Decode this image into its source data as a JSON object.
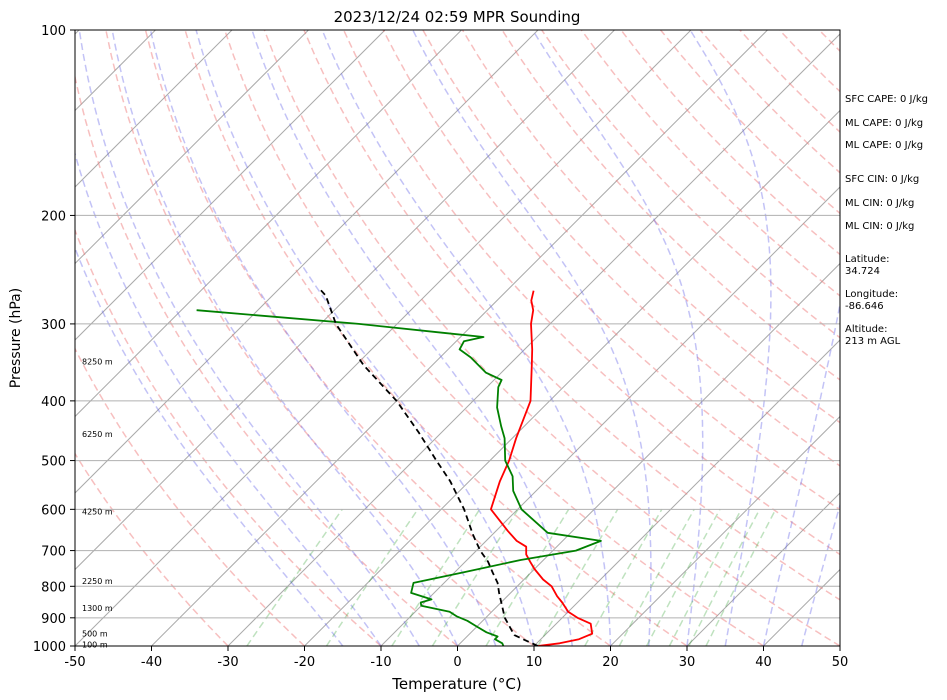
{
  "chart_data": {
    "type": "skew-t",
    "title": "2023/12/24 02:59 MPR Sounding",
    "xlabel": "Temperature (°C)",
    "ylabel": "Pressure (hPa)",
    "xlim": [
      -50,
      50
    ],
    "ylim": [
      1000,
      100
    ],
    "y_scale": "log",
    "x_ticks": [
      -50,
      -40,
      -30,
      -20,
      -10,
      0,
      10,
      20,
      30,
      40,
      50
    ],
    "y_ticks": [
      1000,
      900,
      800,
      700,
      600,
      500,
      400,
      300,
      200,
      100
    ],
    "grid": "horizontal at pressure ticks",
    "height_labels": [
      {
        "p": 995,
        "label": "100 m"
      },
      {
        "p": 955,
        "label": "500 m"
      },
      {
        "p": 868,
        "label": "1300 m"
      },
      {
        "p": 785,
        "label": "2250 m"
      },
      {
        "p": 605,
        "label": "4250 m"
      },
      {
        "p": 453,
        "label": "6250 m"
      },
      {
        "p": 345,
        "label": "8250 m"
      }
    ],
    "series": [
      {
        "color": "#ff0000",
        "points": [
          [
            10.5,
            1000
          ],
          [
            13,
            990
          ],
          [
            15,
            975
          ],
          [
            16,
            955
          ],
          [
            14.5,
            920
          ],
          [
            12,
            900
          ],
          [
            10,
            880
          ],
          [
            8,
            850
          ],
          [
            6.5,
            830
          ],
          [
            4.5,
            800
          ],
          [
            2.5,
            780
          ],
          [
            0,
            750
          ],
          [
            -1.5,
            730
          ],
          [
            -3,
            710
          ],
          [
            -4,
            690
          ],
          [
            -6,
            675
          ],
          [
            -8.5,
            650
          ],
          [
            -13.5,
            600
          ],
          [
            -16,
            540
          ],
          [
            -17.5,
            500
          ],
          [
            -19.5,
            460
          ],
          [
            -22.5,
            400
          ],
          [
            -27,
            350
          ],
          [
            -29,
            330
          ],
          [
            -32.5,
            300
          ],
          [
            -34,
            285
          ],
          [
            -35.5,
            275
          ],
          [
            -36.5,
            265
          ]
        ]
      },
      {
        "color": "#008000",
        "points": [
          [
            6,
            1000
          ],
          [
            5.5,
            990
          ],
          [
            4,
            975
          ],
          [
            4,
            965
          ],
          [
            2,
            950
          ],
          [
            0,
            930
          ],
          [
            -2,
            910
          ],
          [
            -4,
            895
          ],
          [
            -5.5,
            880
          ],
          [
            -10,
            860
          ],
          [
            -10.5,
            850
          ],
          [
            -9.5,
            840
          ],
          [
            -13,
            820
          ],
          [
            -14,
            790
          ],
          [
            -9,
            760
          ],
          [
            -3,
            725
          ],
          [
            3,
            700
          ],
          [
            5,
            675
          ],
          [
            -3,
            655
          ],
          [
            -9.5,
            600
          ],
          [
            -13,
            560
          ],
          [
            -15,
            530
          ],
          [
            -18,
            500
          ],
          [
            -21,
            460
          ],
          [
            -23,
            440
          ],
          [
            -26,
            410
          ],
          [
            -28.5,
            380
          ],
          [
            -29,
            370
          ],
          [
            -32,
            360
          ],
          [
            -36,
            340
          ],
          [
            -38.5,
            330
          ],
          [
            -39,
            320
          ],
          [
            -37,
            315
          ],
          [
            -43,
            310
          ],
          [
            -55,
            300
          ],
          [
            -78,
            285
          ]
        ]
      },
      {
        "color": "#000000",
        "dash": "6,4",
        "points": [
          [
            10.5,
            1000
          ],
          [
            6,
            960
          ],
          [
            2.5,
            900
          ],
          [
            -1.5,
            820
          ],
          [
            -3,
            790
          ],
          [
            -5,
            760
          ],
          [
            -7,
            730
          ],
          [
            -9.5,
            700
          ],
          [
            -12.5,
            660
          ],
          [
            -17,
            600
          ],
          [
            -22.5,
            540
          ],
          [
            -27,
            500
          ],
          [
            -33,
            450
          ],
          [
            -40,
            400
          ],
          [
            -49,
            350
          ],
          [
            -58,
            300
          ],
          [
            -63,
            270
          ],
          [
            -65,
            262
          ]
        ]
      }
    ]
  },
  "info_panel": {
    "sfc_cape": "SFC CAPE: 0 J/kg",
    "ml_cape_1": "ML CAPE: 0 J/kg",
    "ml_cape_2": "ML CAPE: 0 J/kg",
    "sfc_cin": "SFC CIN: 0 J/kg",
    "ml_cin_1": "ML CIN: 0 J/kg",
    "ml_cin_2": "ML CIN: 0 J/kg",
    "latitude_label": "Latitude:",
    "latitude_value": "34.724",
    "longitude_label": "Longitude:",
    "longitude_value": "-86.646",
    "altitude_label": "Altitude:",
    "altitude_value": "213 m AGL"
  }
}
